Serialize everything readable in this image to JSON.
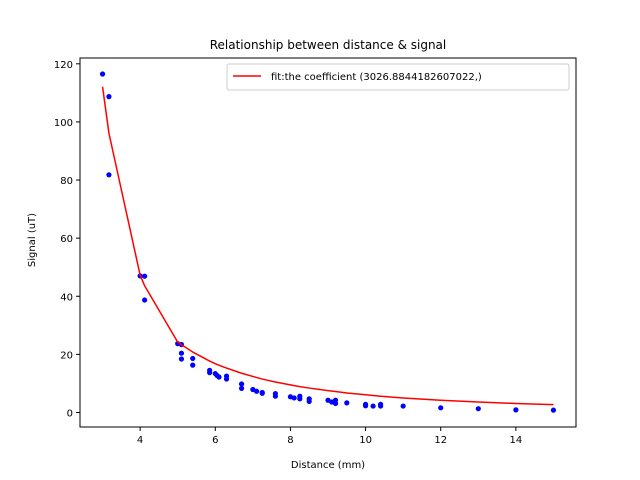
{
  "chart_data": {
    "type": "scatter",
    "title": "Relationship between distance & signal",
    "xlabel": "Distance (mm)",
    "ylabel": "Signal (uT)",
    "xlim": [
      2.4,
      15.6
    ],
    "ylim": [
      -5,
      122
    ],
    "xticks": [
      4,
      6,
      8,
      10,
      12,
      14
    ],
    "yticks": [
      0,
      20,
      40,
      60,
      80,
      100,
      120
    ],
    "grid": false,
    "legend_position": "top-right",
    "series": [
      {
        "name": "",
        "kind": "points",
        "color": "#0000ff",
        "x": [
          3.0,
          3.17,
          3.17,
          4.0,
          4.12,
          4.12,
          5.0,
          5.1,
          5.1,
          5.1,
          5.4,
          5.4,
          5.85,
          5.85,
          6.0,
          6.05,
          6.1,
          6.3,
          6.3,
          6.7,
          6.7,
          7.0,
          7.1,
          7.25,
          7.25,
          7.6,
          7.6,
          8.0,
          8.1,
          8.25,
          8.25,
          8.5,
          8.5,
          9.0,
          9.1,
          9.2,
          9.2,
          9.5,
          10.0,
          10.0,
          10.2,
          10.4,
          10.4,
          11.0,
          12.0,
          13.0,
          14.0,
          15.0
        ],
        "y": [
          116.5,
          108.7,
          81.8,
          47.0,
          46.9,
          38.7,
          23.7,
          23.4,
          20.4,
          18.4,
          18.6,
          16.3,
          14.5,
          13.7,
          13.4,
          12.7,
          12.2,
          12.5,
          11.5,
          9.8,
          8.3,
          7.9,
          7.3,
          6.9,
          6.6,
          6.5,
          5.6,
          5.4,
          5.0,
          5.6,
          4.7,
          4.7,
          3.8,
          4.2,
          3.6,
          4.2,
          3.1,
          3.3,
          2.8,
          2.3,
          2.2,
          2.8,
          2.2,
          2.2,
          1.6,
          1.3,
          0.9,
          0.8
        ]
      },
      {
        "name": "fit:the coefficient (3026.8844182607022,)",
        "kind": "line",
        "color": "#ff0000",
        "x": [
          3.0,
          3.17,
          4.0,
          4.12,
          5.0,
          5.1,
          5.4,
          5.85,
          6.05,
          6.3,
          6.7,
          7.0,
          7.25,
          7.6,
          8.0,
          8.25,
          8.5,
          9.0,
          9.2,
          9.5,
          10.0,
          10.4,
          11.0,
          12.0,
          13.0,
          14.0,
          15.0
        ],
        "y": [
          112.1,
          96.1,
          47.3,
          43.6,
          24.2,
          23.3,
          20.8,
          17.7,
          16.5,
          15.3,
          13.5,
          12.4,
          11.5,
          10.5,
          9.5,
          8.9,
          8.4,
          7.5,
          7.2,
          6.7,
          6.1,
          5.6,
          5.0,
          4.2,
          3.6,
          3.1,
          2.7
        ]
      }
    ]
  }
}
